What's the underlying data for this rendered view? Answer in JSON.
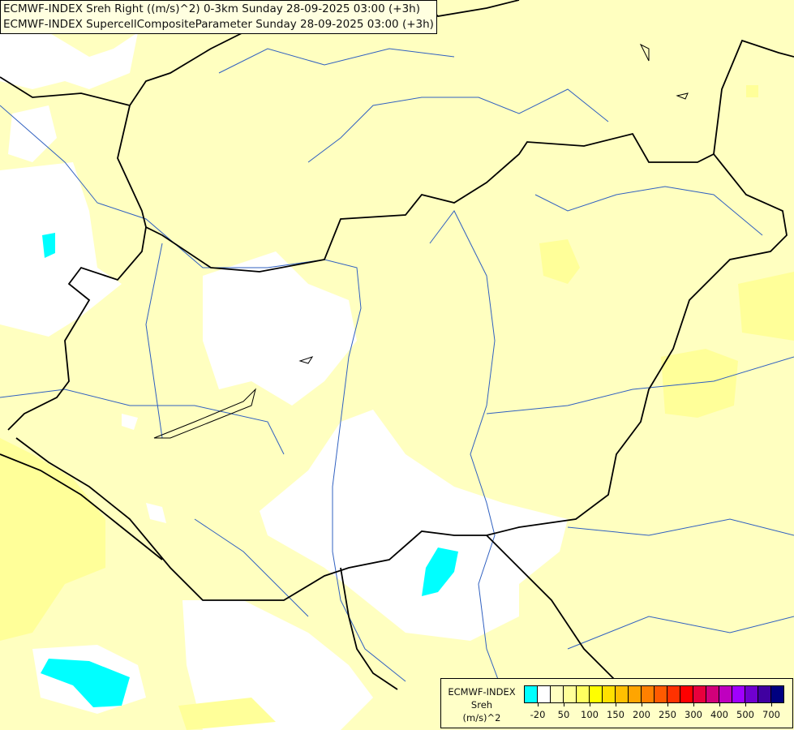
{
  "titles": [
    "ECMWF-INDEX Sreh Right ((m/s)^2) 0-3km Sunday 28-09-2025 03:00 (+3h)",
    "ECMWF-INDEX SupercellCompositeParameter Sunday 28-09-2025 03:00 (+3h)"
  ],
  "legend": {
    "line1": "ECMWF-INDEX",
    "line2": "Sreh",
    "line3": "(m/s)^2",
    "colors": [
      "#00ffff",
      "#ffffff",
      "#ffffc0",
      "#ffff99",
      "#ffff60",
      "#ffff00",
      "#ffe000",
      "#ffc000",
      "#ffa500",
      "#ff8000",
      "#ff5a00",
      "#ff3200",
      "#ff0000",
      "#e8003c",
      "#d2007a",
      "#bf00bf",
      "#a000ff",
      "#7000d0",
      "#4000a0",
      "#000080"
    ],
    "ticks": [
      "-20",
      "50",
      "100",
      "150",
      "200",
      "250",
      "300",
      "400",
      "500",
      "700"
    ]
  },
  "map_colors": {
    "background": "#ffffc0",
    "low": "#ffffff",
    "negative": "#00ffff",
    "moderate": "#ffff99",
    "border": "#000000",
    "river": "#3060c0"
  }
}
